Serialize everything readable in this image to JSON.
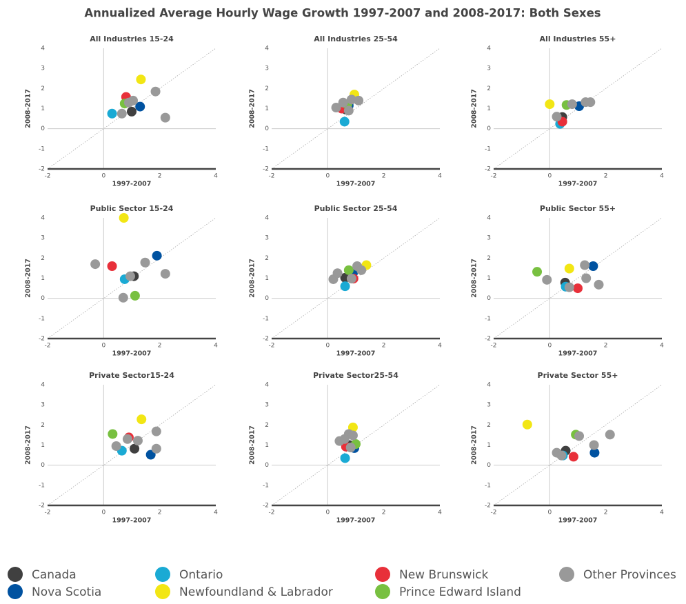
{
  "title": "Annualized Average Hourly Wage Growth 1997-2007 and 2008-2017: Both Sexes",
  "chart_data": [
    {
      "type": "scatter",
      "title": "All Industries 15-24",
      "xlabel": "1997-2007",
      "ylabel": "2008-2017",
      "xlim": [
        -2,
        4
      ],
      "ylim": [
        -2,
        4
      ],
      "xticks": [
        -2,
        0,
        2,
        4
      ],
      "yticks": [
        -2,
        -1,
        0,
        1,
        2,
        3,
        4
      ],
      "diagonal": true,
      "zero_lines": true,
      "series": [
        {
          "name": "Canada",
          "color": "#404040",
          "x": [
            1.0
          ],
          "y": [
            0.85
          ]
        },
        {
          "name": "Nova Scotia",
          "color": "#0052a0",
          "x": [
            1.3
          ],
          "y": [
            1.1
          ]
        },
        {
          "name": "Ontario",
          "color": "#1aaad4",
          "x": [
            0.3
          ],
          "y": [
            0.75
          ]
        },
        {
          "name": "Newfoundland & Labrador",
          "color": "#f2e614",
          "x": [
            1.33
          ],
          "y": [
            2.45
          ]
        },
        {
          "name": "New Brunswick",
          "color": "#e8303a",
          "x": [
            0.8
          ],
          "y": [
            1.58
          ]
        },
        {
          "name": "Prince Edward Island",
          "color": "#78c040",
          "x": [
            0.75
          ],
          "y": [
            1.25
          ]
        },
        {
          "name": "Other Provinces",
          "color": "#999999",
          "x": [
            0.65,
            0.9,
            1.05,
            1.85,
            2.2
          ],
          "y": [
            0.75,
            1.3,
            1.4,
            1.85,
            0.55
          ]
        }
      ]
    },
    {
      "type": "scatter",
      "title": "All Industries 25-54",
      "xlabel": "1997-2007",
      "ylabel": "2008-2017",
      "xlim": [
        -2,
        4
      ],
      "ylim": [
        -2,
        4
      ],
      "xticks": [
        -2,
        0,
        2,
        4
      ],
      "yticks": [
        -2,
        -1,
        0,
        1,
        2,
        3,
        4
      ],
      "diagonal": true,
      "zero_lines": true,
      "series": [
        {
          "name": "Canada",
          "color": "#404040",
          "x": [
            0.65
          ],
          "y": [
            0.95
          ]
        },
        {
          "name": "Nova Scotia",
          "color": "#0052a0",
          "x": [
            0.75
          ],
          "y": [
            1.15
          ]
        },
        {
          "name": "Ontario",
          "color": "#1aaad4",
          "x": [
            0.6
          ],
          "y": [
            0.35
          ]
        },
        {
          "name": "Newfoundland & Labrador",
          "color": "#f2e614",
          "x": [
            0.95
          ],
          "y": [
            1.7
          ]
        },
        {
          "name": "New Brunswick",
          "color": "#e8303a",
          "x": [
            0.5
          ],
          "y": [
            1.0
          ]
        },
        {
          "name": "Prince Edward Island",
          "color": "#78c040",
          "x": [
            0.7
          ],
          "y": [
            1.2
          ]
        },
        {
          "name": "Other Provinces",
          "color": "#999999",
          "x": [
            0.3,
            0.55,
            0.75,
            1.1,
            0.85
          ],
          "y": [
            1.05,
            1.3,
            0.9,
            1.4,
            1.45
          ]
        }
      ]
    },
    {
      "type": "scatter",
      "title": "All Industries 55+",
      "xlabel": "1997-2007",
      "ylabel": "2008-2017",
      "xlim": [
        -2,
        4
      ],
      "ylim": [
        -2,
        4
      ],
      "xticks": [
        -2,
        0,
        2,
        4
      ],
      "yticks": [
        -2,
        -1,
        0,
        1,
        2,
        3,
        4
      ],
      "diagonal": true,
      "zero_lines": true,
      "series": [
        {
          "name": "Canada",
          "color": "#404040",
          "x": [
            0.45
          ],
          "y": [
            0.58
          ]
        },
        {
          "name": "Nova Scotia",
          "color": "#0052a0",
          "x": [
            1.05
          ],
          "y": [
            1.12
          ]
        },
        {
          "name": "Ontario",
          "color": "#1aaad4",
          "x": [
            0.37
          ],
          "y": [
            0.24
          ]
        },
        {
          "name": "Newfoundland & Labrador",
          "color": "#f2e614",
          "x": [
            0.0
          ],
          "y": [
            1.22
          ]
        },
        {
          "name": "New Brunswick",
          "color": "#e8303a",
          "x": [
            0.45
          ],
          "y": [
            0.35
          ]
        },
        {
          "name": "Prince Edward Island",
          "color": "#78c040",
          "x": [
            0.6
          ],
          "y": [
            1.18
          ]
        },
        {
          "name": "Other Provinces",
          "color": "#999999",
          "x": [
            0.25,
            0.8,
            1.28,
            1.45
          ],
          "y": [
            0.6,
            1.22,
            1.32,
            1.32
          ]
        }
      ]
    },
    {
      "type": "scatter",
      "title": "Public Sector 15-24",
      "xlabel": "1997-2007",
      "ylabel": "2008-2017",
      "xlim": [
        -2,
        4
      ],
      "ylim": [
        -2,
        4
      ],
      "xticks": [
        -2,
        0,
        2,
        4
      ],
      "yticks": [
        -2,
        -1,
        0,
        1,
        2,
        3,
        4
      ],
      "diagonal": true,
      "zero_lines": true,
      "series": [
        {
          "name": "Canada",
          "color": "#404040",
          "x": [
            1.08
          ],
          "y": [
            1.1
          ]
        },
        {
          "name": "Nova Scotia",
          "color": "#0052a0",
          "x": [
            1.9
          ],
          "y": [
            2.12
          ]
        },
        {
          "name": "Ontario",
          "color": "#1aaad4",
          "x": [
            0.75
          ],
          "y": [
            0.95
          ]
        },
        {
          "name": "Newfoundland & Labrador",
          "color": "#f2e614",
          "x": [
            0.72
          ],
          "y": [
            4.0
          ]
        },
        {
          "name": "New Brunswick",
          "color": "#e8303a",
          "x": [
            0.3
          ],
          "y": [
            1.6
          ]
        },
        {
          "name": "Prince Edward Island",
          "color": "#78c040",
          "x": [
            1.12
          ],
          "y": [
            0.13
          ]
        },
        {
          "name": "Other Provinces",
          "color": "#999999",
          "x": [
            -0.3,
            0.95,
            1.48,
            2.2,
            0.7
          ],
          "y": [
            1.7,
            1.1,
            1.78,
            1.22,
            0.03
          ]
        }
      ]
    },
    {
      "type": "scatter",
      "title": "Public Sector 25-54",
      "xlabel": "1997-2007",
      "ylabel": "2008-2017",
      "xlim": [
        -2,
        4
      ],
      "ylim": [
        -2,
        4
      ],
      "xticks": [
        -2,
        0,
        2,
        4
      ],
      "yticks": [
        -2,
        -1,
        0,
        1,
        2,
        3,
        4
      ],
      "diagonal": true,
      "zero_lines": true,
      "series": [
        {
          "name": "Canada",
          "color": "#404040",
          "x": [
            0.62
          ],
          "y": [
            1.02
          ]
        },
        {
          "name": "Nova Scotia",
          "color": "#0052a0",
          "x": [
            0.9
          ],
          "y": [
            1.25
          ]
        },
        {
          "name": "Ontario",
          "color": "#1aaad4",
          "x": [
            0.62
          ],
          "y": [
            0.6
          ]
        },
        {
          "name": "Newfoundland & Labrador",
          "color": "#f2e614",
          "x": [
            1.38
          ],
          "y": [
            1.65
          ]
        },
        {
          "name": "New Brunswick",
          "color": "#e8303a",
          "x": [
            0.92
          ],
          "y": [
            0.98
          ]
        },
        {
          "name": "Prince Edward Island",
          "color": "#78c040",
          "x": [
            0.75
          ],
          "y": [
            1.4
          ]
        },
        {
          "name": "Other Provinces",
          "color": "#999999",
          "x": [
            0.2,
            0.35,
            0.85,
            1.05,
            1.2
          ],
          "y": [
            0.95,
            1.25,
            0.98,
            1.6,
            1.4
          ]
        }
      ]
    },
    {
      "type": "scatter",
      "title": "Public Sector 55+",
      "xlabel": "1997-2007",
      "ylabel": "2008-2017",
      "xlim": [
        -2,
        4
      ],
      "ylim": [
        -2,
        4
      ],
      "xticks": [
        -2,
        0,
        2,
        4
      ],
      "yticks": [
        -2,
        -1,
        0,
        1,
        2,
        3,
        4
      ],
      "diagonal": true,
      "zero_lines": true,
      "series": [
        {
          "name": "Canada",
          "color": "#404040",
          "x": [
            0.55
          ],
          "y": [
            0.78
          ]
        },
        {
          "name": "Nova Scotia",
          "color": "#0052a0",
          "x": [
            1.55
          ],
          "y": [
            1.6
          ]
        },
        {
          "name": "Ontario",
          "color": "#1aaad4",
          "x": [
            0.57
          ],
          "y": [
            0.58
          ]
        },
        {
          "name": "Newfoundland & Labrador",
          "color": "#f2e614",
          "x": [
            0.7
          ],
          "y": [
            1.48
          ]
        },
        {
          "name": "New Brunswick",
          "color": "#e8303a",
          "x": [
            1.0
          ],
          "y": [
            0.5
          ]
        },
        {
          "name": "Prince Edward Island",
          "color": "#78c040",
          "x": [
            -0.45
          ],
          "y": [
            1.32
          ]
        },
        {
          "name": "Other Provinces",
          "color": "#999999",
          "x": [
            -0.1,
            0.7,
            1.25,
            1.3,
            1.75
          ],
          "y": [
            0.92,
            0.55,
            1.65,
            1.0,
            0.68
          ]
        }
      ]
    },
    {
      "type": "scatter",
      "title": "Private Sector15-24",
      "xlabel": "1997-2007",
      "ylabel": "2008-2017",
      "xlim": [
        -2,
        4
      ],
      "ylim": [
        -2,
        4
      ],
      "xticks": [
        -2,
        0,
        2,
        4
      ],
      "yticks": [
        -2,
        -1,
        0,
        1,
        2,
        3,
        4
      ],
      "diagonal": true,
      "zero_lines": true,
      "series": [
        {
          "name": "Canada",
          "color": "#404040",
          "x": [
            1.1
          ],
          "y": [
            0.82
          ]
        },
        {
          "name": "Nova Scotia",
          "color": "#0052a0",
          "x": [
            1.68
          ],
          "y": [
            0.52
          ]
        },
        {
          "name": "Ontario",
          "color": "#1aaad4",
          "x": [
            0.65
          ],
          "y": [
            0.72
          ]
        },
        {
          "name": "Newfoundland & Labrador",
          "color": "#f2e614",
          "x": [
            1.35
          ],
          "y": [
            2.28
          ]
        },
        {
          "name": "New Brunswick",
          "color": "#e8303a",
          "x": [
            0.9
          ],
          "y": [
            1.38
          ]
        },
        {
          "name": "Prince Edward Island",
          "color": "#78c040",
          "x": [
            0.32
          ],
          "y": [
            1.55
          ]
        },
        {
          "name": "Other Provinces",
          "color": "#999999",
          "x": [
            0.45,
            0.85,
            1.22,
            1.88,
            1.88
          ],
          "y": [
            0.95,
            1.3,
            1.22,
            1.68,
            0.82
          ]
        }
      ]
    },
    {
      "type": "scatter",
      "title": "Private Sector25-54",
      "xlabel": "1997-2007",
      "ylabel": "2008-2017",
      "xlim": [
        -2,
        4
      ],
      "ylim": [
        -2,
        4
      ],
      "xticks": [
        -2,
        0,
        2,
        4
      ],
      "yticks": [
        -2,
        -1,
        0,
        1,
        2,
        3,
        4
      ],
      "diagonal": true,
      "zero_lines": true,
      "series": [
        {
          "name": "Canada",
          "color": "#404040",
          "x": [
            0.78
          ],
          "y": [
            1.0
          ]
        },
        {
          "name": "Nova Scotia",
          "color": "#0052a0",
          "x": [
            0.95
          ],
          "y": [
            0.85
          ]
        },
        {
          "name": "Ontario",
          "color": "#1aaad4",
          "x": [
            0.62
          ],
          "y": [
            0.35
          ]
        },
        {
          "name": "Newfoundland & Labrador",
          "color": "#f2e614",
          "x": [
            0.9
          ],
          "y": [
            1.88
          ]
        },
        {
          "name": "New Brunswick",
          "color": "#e8303a",
          "x": [
            0.65
          ],
          "y": [
            0.92
          ]
        },
        {
          "name": "Prince Edward Island",
          "color": "#78c040",
          "x": [
            1.0
          ],
          "y": [
            1.05
          ]
        },
        {
          "name": "Other Provinces",
          "color": "#999999",
          "x": [
            0.42,
            0.6,
            0.75,
            0.9,
            0.82
          ],
          "y": [
            1.2,
            1.3,
            1.55,
            1.48,
            0.88
          ]
        }
      ]
    },
    {
      "type": "scatter",
      "title": "Private Sector 55+",
      "xlabel": "1997-2007",
      "ylabel": "2008-2017",
      "xlim": [
        -2,
        4
      ],
      "ylim": [
        -2,
        4
      ],
      "xticks": [
        -2,
        0,
        2,
        4
      ],
      "yticks": [
        -2,
        -1,
        0,
        1,
        2,
        3,
        4
      ],
      "diagonal": true,
      "zero_lines": true,
      "series": [
        {
          "name": "Canada",
          "color": "#404040",
          "x": [
            0.57
          ],
          "y": [
            0.72
          ]
        },
        {
          "name": "Nova Scotia",
          "color": "#0052a0",
          "x": [
            1.6
          ],
          "y": [
            0.62
          ]
        },
        {
          "name": "Ontario",
          "color": "#1aaad4",
          "x": [
            0.47
          ],
          "y": [
            0.48
          ]
        },
        {
          "name": "Newfoundland & Labrador",
          "color": "#f2e614",
          "x": [
            -0.8
          ],
          "y": [
            2.02
          ]
        },
        {
          "name": "New Brunswick",
          "color": "#e8303a",
          "x": [
            0.85
          ],
          "y": [
            0.42
          ]
        },
        {
          "name": "Prince Edward Island",
          "color": "#78c040",
          "x": [
            0.93
          ],
          "y": [
            1.52
          ]
        },
        {
          "name": "Other Provinces",
          "color": "#999999",
          "x": [
            0.25,
            0.42,
            1.05,
            1.58,
            2.15
          ],
          "y": [
            0.62,
            0.48,
            1.45,
            1.0,
            1.52
          ]
        }
      ]
    }
  ]
}
